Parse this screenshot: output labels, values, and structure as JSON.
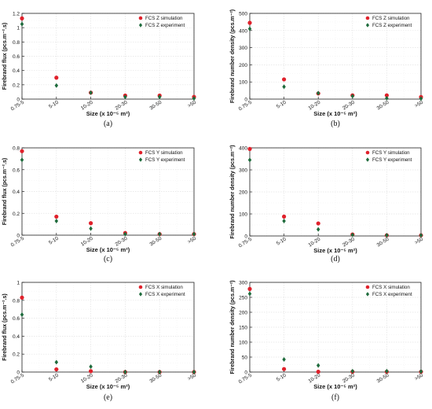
{
  "chart_data": [
    {
      "type": "scatter",
      "panel_label": "(a)",
      "categories": [
        "0.75-5",
        "5-10",
        "10-20",
        "20-30",
        "30-50",
        ">50"
      ],
      "series": [
        {
          "name": "FCS Z simulation",
          "marker": "circle",
          "color": "#e0212b",
          "values": [
            1.13,
            0.3,
            0.09,
            0.05,
            0.05,
            0.03
          ]
        },
        {
          "name": "FCS Z experiment",
          "marker": "diamond",
          "color": "#1e6b3c",
          "values": [
            1.05,
            0.19,
            0.09,
            0.03,
            0.03,
            0.01
          ]
        }
      ],
      "yticks": [
        0,
        0.2,
        0.4,
        0.6,
        0.8,
        1,
        1.2
      ],
      "ylim": [
        0,
        1.2
      ],
      "ylabel": "Firebrand flux (pcs.m⁻².s)",
      "xlabel": "Size (x 10⁻⁵ m²)",
      "grid": true,
      "legend": "top-right"
    },
    {
      "type": "scatter",
      "panel_label": "(b)",
      "categories": [
        "0.75-5",
        "5-10",
        "10-20",
        "20-30",
        "30-50",
        ">50"
      ],
      "series": [
        {
          "name": "FCS Z simulation",
          "marker": "circle",
          "color": "#e0212b",
          "values": [
            445,
            115,
            33,
            22,
            22,
            12
          ]
        },
        {
          "name": "FCS Z experiment",
          "marker": "diamond",
          "color": "#1e6b3c",
          "values": [
            410,
            72,
            35,
            17,
            5,
            3
          ]
        }
      ],
      "yticks": [
        0,
        100,
        200,
        300,
        400,
        500
      ],
      "ylim": [
        0,
        500
      ],
      "ylabel": "Firebrand number density (pcs.m⁻²)",
      "xlabel": "Size (x 10⁻⁵ m²)",
      "grid": true,
      "legend": "top-right"
    },
    {
      "type": "scatter",
      "panel_label": "(c)",
      "categories": [
        "0.75-5",
        "5-10",
        "10-20",
        "20-30",
        "30-50",
        ">50"
      ],
      "series": [
        {
          "name": "FCS Y simulation",
          "marker": "circle",
          "color": "#e0212b",
          "values": [
            0.77,
            0.17,
            0.11,
            0.02,
            0.01,
            0.01
          ]
        },
        {
          "name": "FCS Y experiment",
          "marker": "diamond",
          "color": "#1e6b3c",
          "values": [
            0.69,
            0.13,
            0.06,
            0.01,
            0.01,
            0.01
          ]
        }
      ],
      "yticks": [
        0,
        0.2,
        0.4,
        0.6,
        0.8
      ],
      "ylim": [
        0,
        0.8
      ],
      "ylabel": "Firebrand flux (pcs.m⁻².s)",
      "xlabel": "Size (x 10⁻⁵ m²)",
      "grid": true,
      "legend": "top-right"
    },
    {
      "type": "scatter",
      "panel_label": "(d)",
      "categories": [
        "0.75-5",
        "5-10",
        "10-20",
        "20-30",
        "30-50",
        ">50"
      ],
      "series": [
        {
          "name": "FCS Y simulation",
          "marker": "circle",
          "color": "#e0212b",
          "values": [
            395,
            88,
            57,
            7,
            3,
            3
          ]
        },
        {
          "name": "FCS Y experiment",
          "marker": "diamond",
          "color": "#1e6b3c",
          "values": [
            345,
            68,
            30,
            5,
            3,
            3
          ]
        }
      ],
      "yticks": [
        0,
        100,
        200,
        300,
        400
      ],
      "ylim": [
        0,
        400
      ],
      "ylabel": "Firebrand number density (pcs.m⁻²)",
      "xlabel": "Size (x 10⁻⁵ m²)",
      "grid": true,
      "legend": "top-right"
    },
    {
      "type": "scatter",
      "panel_label": "(e)",
      "categories": [
        "0.75-5",
        "5-10",
        "10-20",
        "20-30",
        "30-50",
        ">50"
      ],
      "series": [
        {
          "name": "FCS X simulation",
          "marker": "circle",
          "color": "#e0212b",
          "values": [
            0.83,
            0.03,
            0.01,
            0.0,
            0.0,
            0.0
          ]
        },
        {
          "name": "FCS X experiment",
          "marker": "diamond",
          "color": "#1e6b3c",
          "values": [
            0.64,
            0.11,
            0.06,
            0.0,
            0.0,
            0.0
          ]
        }
      ],
      "yticks": [
        0,
        0.2,
        0.4,
        0.6,
        0.8,
        1
      ],
      "ylim": [
        0,
        1
      ],
      "ylabel": "Firebrand flux (pcs.m⁻².s)",
      "xlabel": "Size (x 10⁻⁵ m²)",
      "grid": true,
      "legend": "top-right"
    },
    {
      "type": "scatter",
      "panel_label": "(f)",
      "categories": [
        "0.75-5",
        "5-10",
        "10-20",
        "20-30",
        "30-50",
        ">50"
      ],
      "series": [
        {
          "name": "FCS X simulation",
          "marker": "circle",
          "color": "#e0212b",
          "values": [
            278,
            10,
            1,
            1,
            1,
            1
          ]
        },
        {
          "name": "FCS X experiment",
          "marker": "diamond",
          "color": "#1e6b3c",
          "values": [
            262,
            42,
            22,
            3,
            3,
            2
          ]
        }
      ],
      "yticks": [
        0,
        50,
        100,
        150,
        200,
        250,
        300
      ],
      "ylim": [
        0,
        300
      ],
      "ylabel": "Firebrand number density (pcs.m⁻²)",
      "xlabel": "Size (x 10⁻⁵ m²)",
      "grid": true,
      "legend": "top-right"
    }
  ]
}
